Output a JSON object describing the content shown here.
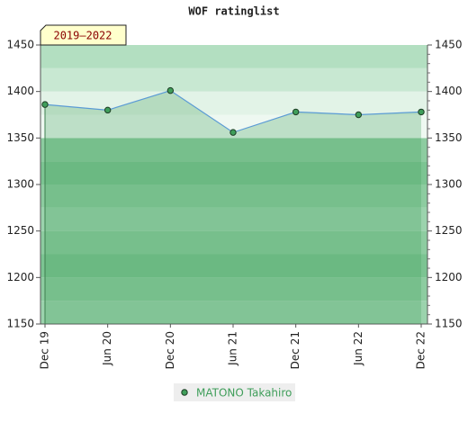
{
  "chart_data": {
    "type": "area-line",
    "title": "WOF ratinglist",
    "period_label": "2019–2022",
    "categories": [
      "Dec 19",
      "Jun 20",
      "Dec 20",
      "Jun 21",
      "Dec 21",
      "Jun 22",
      "Dec 22"
    ],
    "series": [
      {
        "name": "MATONO Takahiro",
        "color": "#3f9e5a",
        "line_color": "#5b9bd5",
        "values": [
          1386,
          1380,
          1401,
          1356,
          1378,
          1375,
          1378
        ]
      }
    ],
    "ylim": [
      1150,
      1450
    ],
    "yticks": [
      1150,
      1200,
      1250,
      1300,
      1350,
      1400,
      1450
    ]
  }
}
